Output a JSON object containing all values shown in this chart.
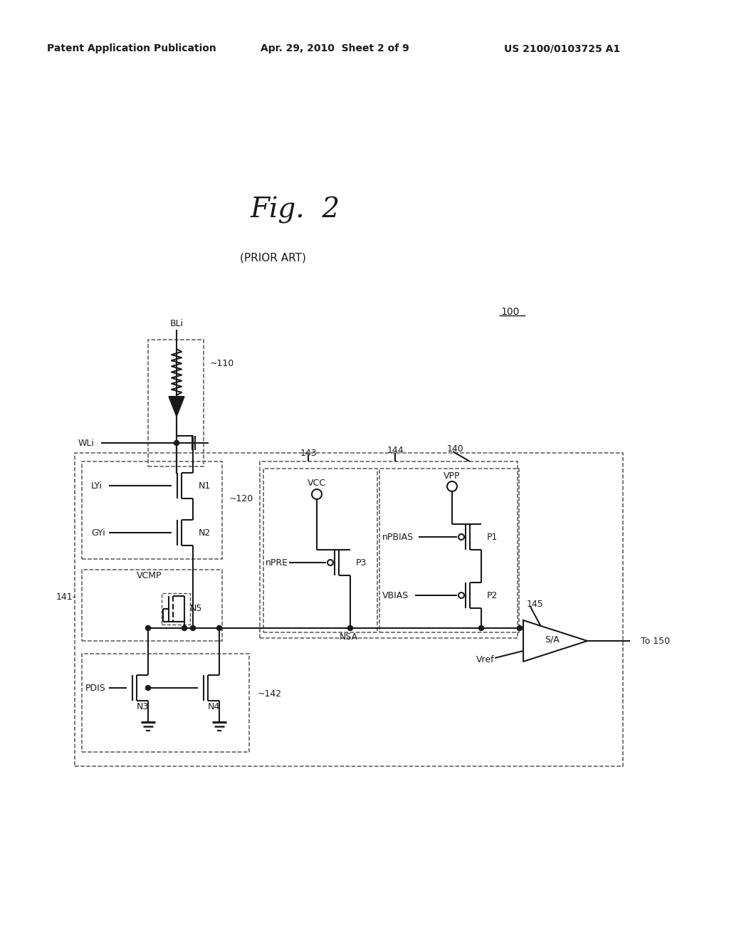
{
  "bg_color": "#ffffff",
  "line_color": "#1a1a1a",
  "header_left": "Patent Application Publication",
  "header_mid": "Apr. 29, 2010  Sheet 2 of 9",
  "header_right": "US 2100/0103725 A1"
}
